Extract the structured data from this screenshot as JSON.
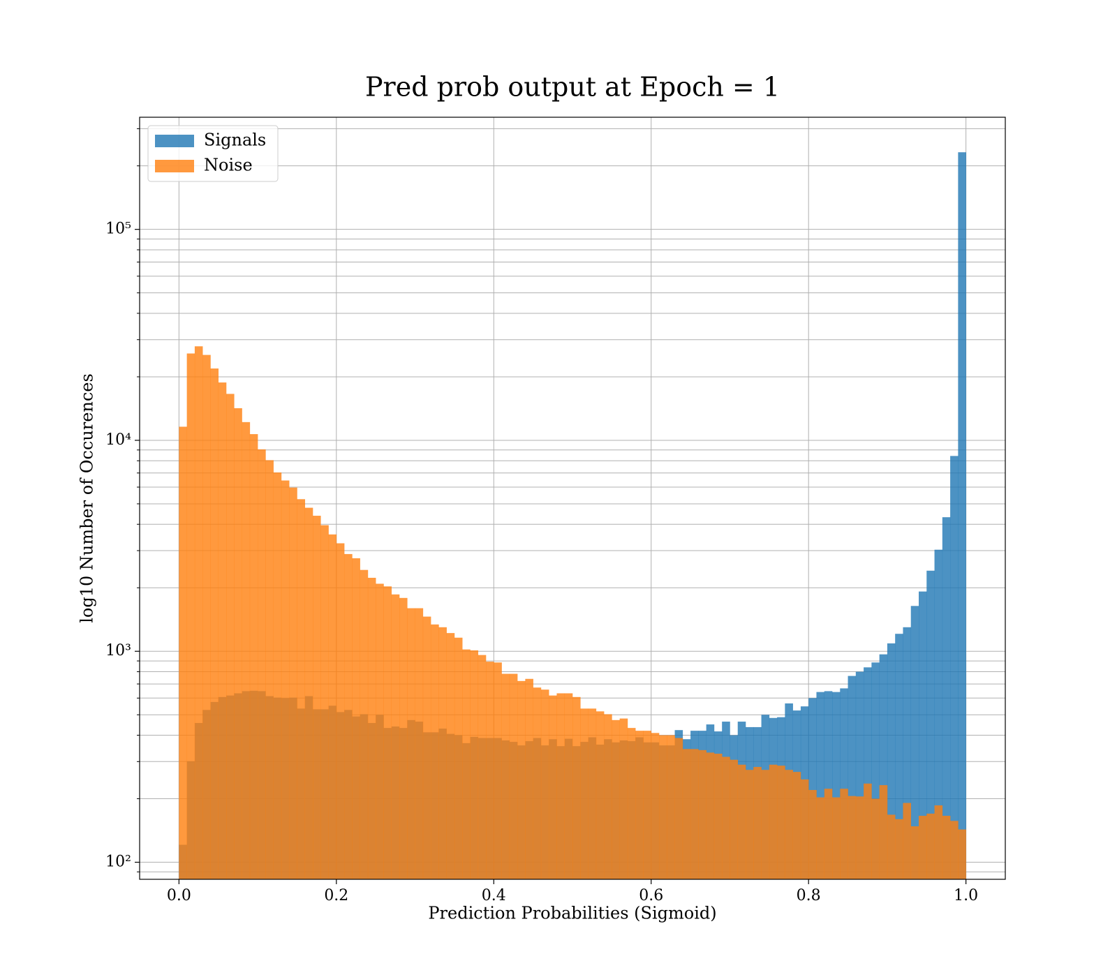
{
  "chart_data": {
    "type": "histogram",
    "title": "Pred prob output at Epoch = 1",
    "x_label": "Prediction Probabilities (Sigmoid)",
    "y_label": "log10 Number of Occurences",
    "bins": [
      0,
      0.01,
      0.02,
      0.03,
      0.04,
      0.05,
      0.06,
      0.07,
      0.08,
      0.09,
      0.1,
      0.11,
      0.12,
      0.13,
      0.14,
      0.15,
      0.16,
      0.17,
      0.18,
      0.19,
      0.2,
      0.21,
      0.22,
      0.23,
      0.24,
      0.25,
      0.26,
      0.27,
      0.28,
      0.29,
      0.3,
      0.31,
      0.32,
      0.33,
      0.34,
      0.35,
      0.36,
      0.37,
      0.38,
      0.39,
      0.4,
      0.41,
      0.42,
      0.43,
      0.44,
      0.45,
      0.46,
      0.47,
      0.48,
      0.49,
      0.5,
      0.51,
      0.52,
      0.53,
      0.54,
      0.55,
      0.56,
      0.57,
      0.58,
      0.59,
      0.6,
      0.61,
      0.62,
      0.63,
      0.64,
      0.65,
      0.66,
      0.67,
      0.68,
      0.69,
      0.7,
      0.71,
      0.72,
      0.73,
      0.74,
      0.75,
      0.76,
      0.77,
      0.78,
      0.79,
      0.8,
      0.81,
      0.82,
      0.83,
      0.84,
      0.85,
      0.86,
      0.87,
      0.88,
      0.89,
      0.9,
      0.91,
      0.92,
      0.93,
      0.94,
      0.95,
      0.96,
      0.97,
      0.98,
      0.99,
      1
    ],
    "series": [
      {
        "name": "Signals",
        "color": "#1f77b4",
        "values": [
          121,
          301,
          457,
          527,
          575,
          607,
          617,
          632,
          647,
          650,
          647,
          613,
          603,
          600,
          603,
          535,
          613,
          531,
          531,
          552,
          515,
          527,
          491,
          503,
          457,
          500,
          433,
          440,
          433,
          472,
          464,
          413,
          413,
          430,
          406,
          400,
          367,
          393,
          388,
          388,
          388,
          378,
          372,
          358,
          375,
          388,
          358,
          383,
          355,
          385,
          355,
          372,
          391,
          361,
          383,
          370,
          378,
          375,
          391,
          370,
          370,
          358,
          358,
          423,
          383,
          420,
          420,
          450,
          417,
          464,
          400,
          464,
          437,
          437,
          500,
          483,
          487,
          566,
          524,
          548,
          600,
          641,
          647,
          641,
          667,
          764,
          800,
          839,
          885,
          967,
          1090,
          1210,
          1300,
          1640,
          1920,
          2410,
          3030,
          4320,
          8430,
          232000
        ]
      },
      {
        "name": "Noise",
        "color": "#ff7f0e",
        "values": [
          11600,
          25800,
          27900,
          25400,
          21900,
          18800,
          16600,
          14200,
          12200,
          10700,
          9060,
          8050,
          7040,
          6450,
          5970,
          5260,
          4790,
          4390,
          3960,
          3580,
          3250,
          2890,
          2760,
          2430,
          2230,
          2090,
          2030,
          1860,
          1790,
          1600,
          1600,
          1460,
          1340,
          1300,
          1220,
          1160,
          1020,
          1010,
          960,
          893,
          885,
          782,
          782,
          723,
          740,
          673,
          658,
          617,
          632,
          632,
          607,
          535,
          535,
          519,
          503,
          472,
          480,
          433,
          420,
          420,
          410,
          400,
          400,
          388,
          344,
          344,
          340,
          331,
          327,
          316,
          306,
          290,
          274,
          283,
          274,
          290,
          287,
          274,
          268,
          247,
          220,
          203,
          223,
          203,
          223,
          206,
          205,
          236,
          200,
          232,
          168,
          160,
          191,
          148,
          166,
          170,
          186,
          166,
          157,
          143
        ]
      }
    ],
    "opacity": 0.8,
    "xlim": [
      -0.05,
      1.05
    ],
    "ylim": [
      83,
      340000
    ],
    "y_log": true,
    "xticks": [
      {
        "value": 0,
        "label": "0.0"
      },
      0.2,
      0.4,
      0.6,
      0.8,
      {
        "value": 1,
        "label": "1.0"
      }
    ],
    "yticks": [
      {
        "value": 100,
        "label": "10²"
      },
      {
        "value": 1000,
        "label": "10³"
      },
      {
        "value": 10000,
        "label": "10⁴"
      },
      {
        "value": 100000,
        "label": "10⁵"
      }
    ],
    "yminorticks": [
      90,
      200,
      300,
      400,
      500,
      600,
      700,
      800,
      900,
      2000,
      3000,
      4000,
      5000,
      6000,
      7000,
      8000,
      9000,
      20000,
      30000,
      40000,
      50000,
      60000,
      70000,
      80000,
      90000,
      200000,
      300000
    ],
    "grid": true,
    "legend": "upper left"
  }
}
